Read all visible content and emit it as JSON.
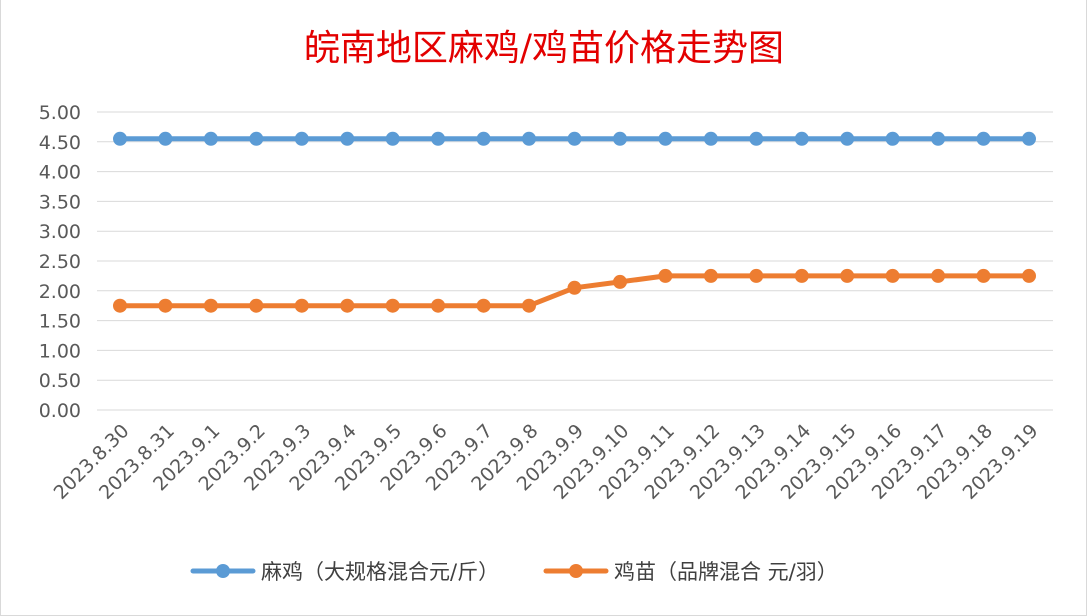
{
  "chart_data": {
    "type": "line",
    "title": "皖南地区麻鸡/鸡苗价格走势图",
    "xlabel": "",
    "ylabel": "",
    "ylim": [
      0,
      5
    ],
    "ytick_step": 0.5,
    "ytick_labels": [
      "0.00",
      "0.50",
      "1.00",
      "1.50",
      "2.00",
      "2.50",
      "3.00",
      "3.50",
      "4.00",
      "4.50",
      "5.00"
    ],
    "grid": true,
    "legend_position": "bottom",
    "categories": [
      "2023.8.30",
      "2023.8.31",
      "2023.9.1",
      "2023.9.2",
      "2023.9.3",
      "2023.9.4",
      "2023.9.5",
      "2023.9.6",
      "2023.9.7",
      "2023.9.8",
      "2023.9.9",
      "2023.9.10",
      "2023.9.11",
      "2023.9.12",
      "2023.9.13",
      "2023.9.14",
      "2023.9.15",
      "2023.9.16",
      "2023.9.17",
      "2023.9.18",
      "2023.9.19"
    ],
    "series": [
      {
        "name": "麻鸡（大规格混合元/斤）",
        "color": "#5b9bd5",
        "values": [
          4.55,
          4.55,
          4.55,
          4.55,
          4.55,
          4.55,
          4.55,
          4.55,
          4.55,
          4.55,
          4.55,
          4.55,
          4.55,
          4.55,
          4.55,
          4.55,
          4.55,
          4.55,
          4.55,
          4.55,
          4.55
        ]
      },
      {
        "name": "鸡苗（品牌混合 元/羽）",
        "color": "#ed7d31",
        "values": [
          1.75,
          1.75,
          1.75,
          1.75,
          1.75,
          1.75,
          1.75,
          1.75,
          1.75,
          1.75,
          2.05,
          2.15,
          2.25,
          2.25,
          2.25,
          2.25,
          2.25,
          2.25,
          2.25,
          2.25,
          2.25
        ]
      }
    ]
  }
}
